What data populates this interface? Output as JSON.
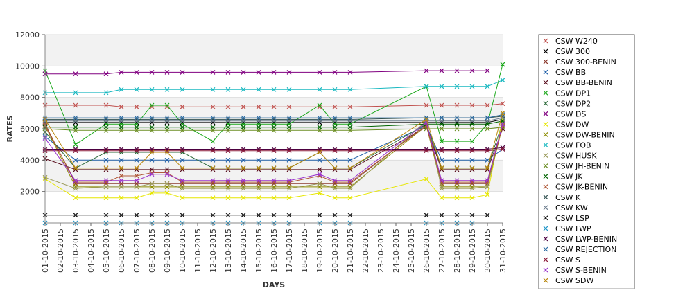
{
  "chart_data": {
    "type": "line",
    "title": "",
    "xlabel": "DAYS",
    "ylabel": "RATES",
    "ylim": [
      0,
      12000
    ],
    "y_ticks": [
      2000,
      4000,
      6000,
      8000,
      10000,
      12000
    ],
    "grid": true,
    "legend_position": "right",
    "categories": [
      "01-10-2015",
      "02-10-2015",
      "03-10-2015",
      "04-10-2015",
      "05-10-2015",
      "06-10-2015",
      "07-10-2015",
      "08-10-2015",
      "09-10-2015",
      "10-10-2015",
      "11-10-2015",
      "12-10-2015",
      "13-10-2015",
      "14-10-2015",
      "15-10-2015",
      "16-10-2015",
      "17-10-2015",
      "18-10-2015",
      "19-10-2015",
      "20-10-2015",
      "21-10-2015",
      "22-10-2015",
      "23-10-2015",
      "24-10-2015",
      "25-10-2015",
      "26-10-2015",
      "27-10-2015",
      "28-10-2015",
      "29-10-2015",
      "30-10-2015",
      "31-10-2015"
    ],
    "series": [
      {
        "name": "CSW  W240",
        "color": "#c0504d",
        "values": [
          7500,
          null,
          7500,
          null,
          7500,
          7400,
          7400,
          7400,
          7400,
          7400,
          null,
          7400,
          7400,
          7400,
          7400,
          7400,
          7400,
          null,
          7400,
          7400,
          7400,
          null,
          null,
          null,
          null,
          7500,
          7500,
          7500,
          7500,
          7500,
          7600
        ]
      },
      {
        "name": "CSW 300",
        "color": "#000000",
        "values": [
          6400,
          null,
          6400,
          null,
          6400,
          6400,
          6400,
          6400,
          6400,
          6400,
          null,
          6400,
          6400,
          6400,
          6400,
          6400,
          6400,
          null,
          6400,
          6400,
          6400,
          null,
          null,
          null,
          null,
          6400,
          6400,
          6400,
          6400,
          6400,
          6600
        ]
      },
      {
        "name": "CSW 300-BENIN",
        "color": "#8b3a2f",
        "values": [
          6300,
          null,
          2500,
          null,
          2500,
          2500,
          2500,
          2500,
          2500,
          2500,
          null,
          2500,
          2500,
          2500,
          2500,
          2500,
          2500,
          null,
          2500,
          2500,
          2500,
          null,
          null,
          null,
          null,
          6300,
          2500,
          2500,
          2500,
          2500,
          6300
        ]
      },
      {
        "name": "CSW BB",
        "color": "#1f5fa8",
        "values": [
          5500,
          null,
          4000,
          null,
          4000,
          4000,
          4000,
          4000,
          4000,
          4000,
          null,
          4000,
          4000,
          4000,
          4000,
          4000,
          4000,
          null,
          4000,
          4000,
          4000,
          null,
          null,
          null,
          null,
          6200,
          4000,
          4000,
          4000,
          4000,
          4700
        ]
      },
      {
        "name": "CSW BB-BENIN",
        "color": "#5a0f1f",
        "values": [
          4100,
          null,
          3400,
          null,
          3400,
          3400,
          3400,
          3400,
          3400,
          3400,
          null,
          3400,
          3400,
          3400,
          3400,
          3400,
          3400,
          null,
          3400,
          3400,
          3400,
          null,
          null,
          null,
          null,
          6100,
          3400,
          3400,
          3400,
          3400,
          6000
        ]
      },
      {
        "name": "CSW DP1",
        "color": "#1aa81a",
        "values": [
          9700,
          null,
          5000,
          null,
          6300,
          6300,
          6300,
          7500,
          7500,
          6300,
          null,
          5200,
          6300,
          6300,
          6300,
          6300,
          6300,
          null,
          7500,
          6300,
          6300,
          null,
          null,
          null,
          null,
          8700,
          5200,
          5200,
          5200,
          6300,
          10100
        ]
      },
      {
        "name": "CSW DP2",
        "color": "#2e6b3c",
        "values": [
          5800,
          null,
          3500,
          null,
          4500,
          4500,
          4500,
          4500,
          4500,
          4500,
          null,
          3500,
          3500,
          3500,
          3500,
          3500,
          3500,
          null,
          4500,
          3500,
          3500,
          null,
          null,
          null,
          null,
          6300,
          3500,
          3500,
          3500,
          3500,
          6400
        ]
      },
      {
        "name": "CSW DS",
        "color": "#800080",
        "values": [
          9500,
          null,
          9500,
          null,
          9500,
          9600,
          9600,
          9600,
          9600,
          9600,
          null,
          9600,
          9600,
          9600,
          9600,
          9600,
          9600,
          null,
          9600,
          9600,
          9600,
          null,
          null,
          null,
          null,
          9700,
          9700,
          9700,
          9700,
          9700,
          null
        ]
      },
      {
        "name": "CSW DW",
        "color": "#e6e600",
        "values": [
          2800,
          null,
          1600,
          null,
          1600,
          1600,
          1600,
          1900,
          1900,
          1600,
          null,
          1600,
          1600,
          1600,
          1600,
          1600,
          1600,
          null,
          1900,
          1600,
          1600,
          null,
          null,
          null,
          null,
          2800,
          1600,
          1600,
          1600,
          1800,
          6700
        ]
      },
      {
        "name": "CSW DW-BENIN",
        "color": "#8c8c00",
        "values": [
          6200,
          null,
          2300,
          null,
          2300,
          2300,
          2300,
          2300,
          2300,
          2300,
          null,
          2300,
          2300,
          2300,
          2300,
          2300,
          2300,
          null,
          2300,
          2300,
          2300,
          null,
          null,
          null,
          null,
          6200,
          2300,
          2300,
          2300,
          2300,
          6200
        ]
      },
      {
        "name": "CSW FOB",
        "color": "#18b8c0",
        "values": [
          8300,
          null,
          8300,
          null,
          8300,
          8500,
          8500,
          8500,
          8500,
          8500,
          null,
          8500,
          8500,
          8500,
          8500,
          8500,
          8500,
          null,
          8500,
          8500,
          8500,
          null,
          null,
          null,
          null,
          8700,
          8700,
          8700,
          8700,
          8700,
          9100
        ]
      },
      {
        "name": "CSW HUSK",
        "color": "#9a9a5a",
        "values": [
          2900,
          null,
          2200,
          null,
          2300,
          2300,
          2300,
          2500,
          2500,
          2200,
          null,
          2200,
          2200,
          2200,
          2200,
          2200,
          2200,
          null,
          2500,
          2200,
          2200,
          null,
          null,
          null,
          null,
          6500,
          2200,
          2200,
          2200,
          2300,
          6400
        ]
      },
      {
        "name": "CSW JH-BENIN",
        "color": "#6b8e23",
        "values": [
          6000,
          null,
          5900,
          null,
          5900,
          5900,
          5900,
          5900,
          5900,
          5900,
          null,
          5900,
          5900,
          5900,
          5900,
          5900,
          5900,
          null,
          5900,
          5900,
          5900,
          null,
          null,
          null,
          null,
          6000,
          6000,
          6000,
          6000,
          6000,
          6100
        ]
      },
      {
        "name": "CSW JK",
        "color": "#006400",
        "values": [
          6100,
          null,
          6100,
          null,
          6100,
          6100,
          6100,
          6100,
          6100,
          6100,
          null,
          6100,
          6100,
          6100,
          6100,
          6100,
          6100,
          null,
          6100,
          6100,
          6100,
          null,
          null,
          null,
          null,
          6300,
          6300,
          6300,
          6300,
          6300,
          6500
        ]
      },
      {
        "name": "CSW JK-BENIN",
        "color": "#b05a3a",
        "values": [
          6200,
          null,
          2600,
          null,
          2600,
          3000,
          3000,
          3200,
          3200,
          2600,
          null,
          2600,
          2600,
          2600,
          2600,
          2600,
          2600,
          null,
          3000,
          2600,
          2600,
          null,
          null,
          null,
          null,
          6200,
          2600,
          2600,
          2600,
          2600,
          6200
        ]
      },
      {
        "name": "CSW K",
        "color": "#2f4f4f",
        "values": [
          6600,
          null,
          6600,
          null,
          6600,
          6600,
          6600,
          6600,
          6600,
          6600,
          null,
          6600,
          6600,
          6600,
          6600,
          6600,
          6600,
          null,
          6600,
          6600,
          6600,
          null,
          null,
          null,
          null,
          6700,
          6700,
          6700,
          6700,
          6700,
          6800
        ]
      },
      {
        "name": "CSW KW",
        "color": "#708090",
        "values": [
          6500,
          null,
          6500,
          null,
          6500,
          6500,
          6500,
          6500,
          6500,
          6500,
          null,
          6500,
          6500,
          6500,
          6500,
          6500,
          6500,
          null,
          6500,
          6500,
          6500,
          null,
          null,
          null,
          null,
          6500,
          6500,
          6500,
          6500,
          6500,
          6700
        ]
      },
      {
        "name": "CSW LSP",
        "color": "#111111",
        "values": [
          500,
          null,
          500,
          null,
          500,
          500,
          500,
          500,
          500,
          500,
          null,
          500,
          500,
          500,
          500,
          500,
          500,
          null,
          500,
          500,
          500,
          null,
          null,
          null,
          null,
          500,
          500,
          500,
          500,
          500,
          null
        ]
      },
      {
        "name": "CSW LWP",
        "color": "#2196c8",
        "values": [
          0,
          null,
          0,
          null,
          0,
          0,
          0,
          0,
          0,
          0,
          null,
          0,
          0,
          0,
          0,
          0,
          0,
          null,
          0,
          0,
          0,
          null,
          null,
          null,
          null,
          0,
          0,
          0,
          0,
          null,
          null
        ]
      },
      {
        "name": "CSW LWP-BENIN",
        "color": "#4b0040",
        "values": [
          4700,
          null,
          4700,
          null,
          4700,
          4700,
          4700,
          4700,
          4700,
          4700,
          null,
          4700,
          4700,
          4700,
          4700,
          4700,
          4700,
          null,
          4700,
          4700,
          4700,
          null,
          null,
          null,
          null,
          4700,
          4700,
          4700,
          4700,
          4700,
          4800
        ]
      },
      {
        "name": "CSW REJECTION",
        "color": "#2e6da4",
        "values": [
          6700,
          null,
          6700,
          null,
          6700,
          6700,
          6700,
          6700,
          6700,
          6700,
          null,
          6700,
          6700,
          6700,
          6700,
          6700,
          6700,
          null,
          6700,
          6700,
          6700,
          null,
          null,
          null,
          null,
          6700,
          6700,
          6700,
          6700,
          6700,
          6900
        ]
      },
      {
        "name": "CSW S",
        "color": "#8b1a3a",
        "values": [
          4600,
          null,
          4600,
          null,
          4600,
          4600,
          4600,
          4600,
          4600,
          4600,
          null,
          4600,
          4600,
          4600,
          4600,
          4600,
          4600,
          null,
          4600,
          4600,
          4600,
          null,
          null,
          null,
          null,
          4600,
          4600,
          4600,
          4600,
          4600,
          4700
        ]
      },
      {
        "name": "CSW S-BENIN",
        "color": "#9932cc",
        "values": [
          5400,
          null,
          2700,
          null,
          2700,
          2700,
          2700,
          3100,
          3100,
          2700,
          null,
          2700,
          2700,
          2700,
          2700,
          2700,
          2700,
          null,
          3100,
          2700,
          2700,
          null,
          null,
          null,
          null,
          6400,
          2700,
          2700,
          2700,
          2700,
          6300
        ]
      },
      {
        "name": "CSW SDW",
        "color": "#b8860b",
        "values": [
          6600,
          null,
          3500,
          null,
          3500,
          3500,
          3500,
          4500,
          4500,
          3500,
          null,
          3500,
          3500,
          3500,
          3500,
          3500,
          3500,
          null,
          4500,
          3500,
          3500,
          null,
          null,
          null,
          null,
          6600,
          3500,
          3500,
          3500,
          3500,
          7000
        ]
      }
    ]
  }
}
